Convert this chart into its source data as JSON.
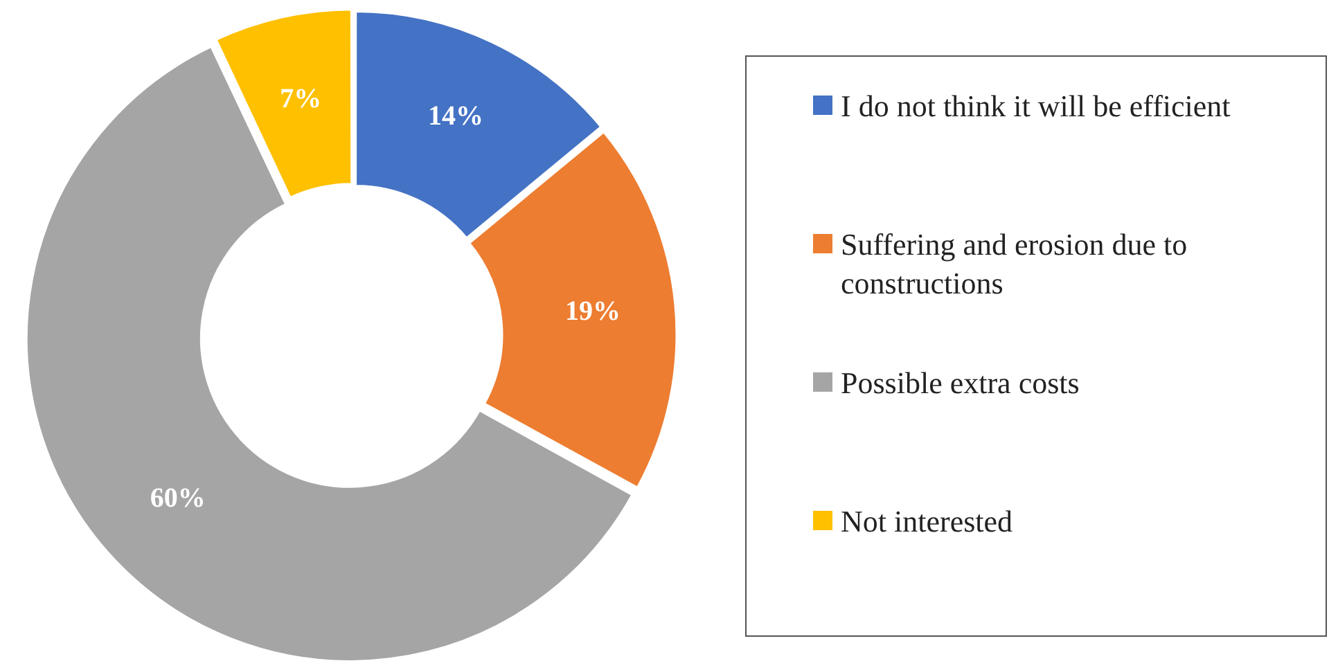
{
  "chart_data": {
    "type": "donut",
    "categories": [
      "I do not think it will be efficient",
      "Suffering and erosion due to constructions",
      "Possible extra costs",
      "Not interested"
    ],
    "values": [
      14,
      19,
      60,
      7
    ],
    "colors": [
      "#4472c4",
      "#ed7d31",
      "#a5a5a5",
      "#ffc000"
    ],
    "value_labels": [
      "14%",
      "19%",
      "60%",
      "7%"
    ],
    "legend": "right"
  }
}
